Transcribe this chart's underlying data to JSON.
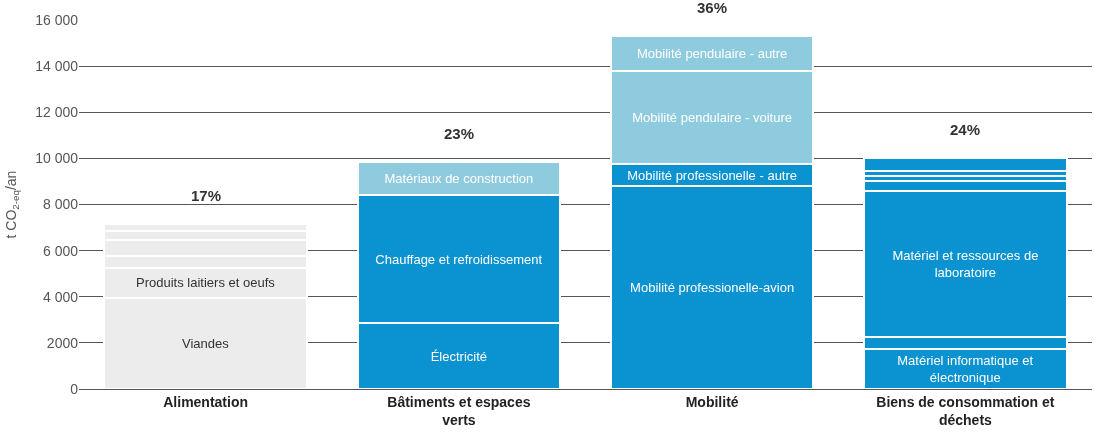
{
  "chart_data": {
    "type": "bar",
    "stacked": true,
    "ylabel": "t CO$_{2-eq}$/an",
    "categories": [
      "Alimentation",
      "Bâtiments et espaces verts",
      "Mobilité",
      "Biens de consommation et déchets"
    ],
    "ylim": [
      0,
      16000
    ],
    "yticks": [
      0,
      2000,
      {
        "value": 4000,
        "label": "4 000"
      },
      {
        "value": 6000,
        "label": "6 000"
      },
      {
        "value": 8000,
        "label": "8 000"
      },
      {
        "value": 10000,
        "label": "10 000"
      },
      {
        "value": 12000,
        "label": "12 000"
      },
      {
        "value": 14000,
        "label": "14 000"
      },
      {
        "value": 16000,
        "label": "16 000"
      }
    ],
    "grid": "y",
    "series": [
      {
        "values": [
          3950,
          2850,
          8800,
          1750
        ],
        "colors": [
          "#ececec",
          "#0a93d0",
          "#0a93d0",
          "#0a93d0"
        ],
        "value_labels": [
          "Viandes",
          "Électricité",
          "Mobilité professionelle-avion",
          "Matériel informatique et électronique"
        ]
      },
      {
        "values": [
          1300,
          5550,
          950,
          500
        ],
        "colors": [
          "#ececec",
          "#0a93d0",
          "#0a93d0",
          "#0a93d0"
        ],
        "value_labels": [
          "Produits laitiers et oeufs",
          "Chauffage et refroidissement",
          "Mobilité professionelle - autre",
          null
        ]
      },
      {
        "values": [
          500,
          1450,
          4050,
          6350
        ],
        "colors": [
          "#ececec",
          "#8fcbdf",
          "#8fcbdf",
          "#0a93d0"
        ],
        "value_labels": [
          null,
          "Matériaux de construction",
          "Mobilité pendulaire - voiture",
          "Matériel et ressources de laboratoire"
        ]
      },
      {
        "values": [
          700,
          null,
          1500,
          400
        ],
        "colors": [
          "#ececec",
          "#8fcbdf",
          "#8fcbdf",
          "#0a93d0"
        ],
        "value_labels": [
          null,
          null,
          "Mobilité pendulaire - autre",
          null
        ]
      },
      {
        "values": [
          380,
          null,
          null,
          250
        ],
        "colors": [
          "#ececec",
          "#0a93d0",
          "#0a93d0",
          "#0a93d0"
        ]
      },
      {
        "values": [
          320,
          null,
          null,
          200
        ],
        "colors": [
          "#ececec",
          "#0a93d0",
          "#0a93d0",
          "#0a93d0"
        ]
      },
      {
        "values": [
          null,
          null,
          null,
          550
        ],
        "colors": [
          "#ececec",
          "#0a93d0",
          "#0a93d0",
          "#0a93d0"
        ]
      }
    ],
    "annotations": [
      "17%",
      "23%",
      "36%",
      "24%"
    ]
  }
}
